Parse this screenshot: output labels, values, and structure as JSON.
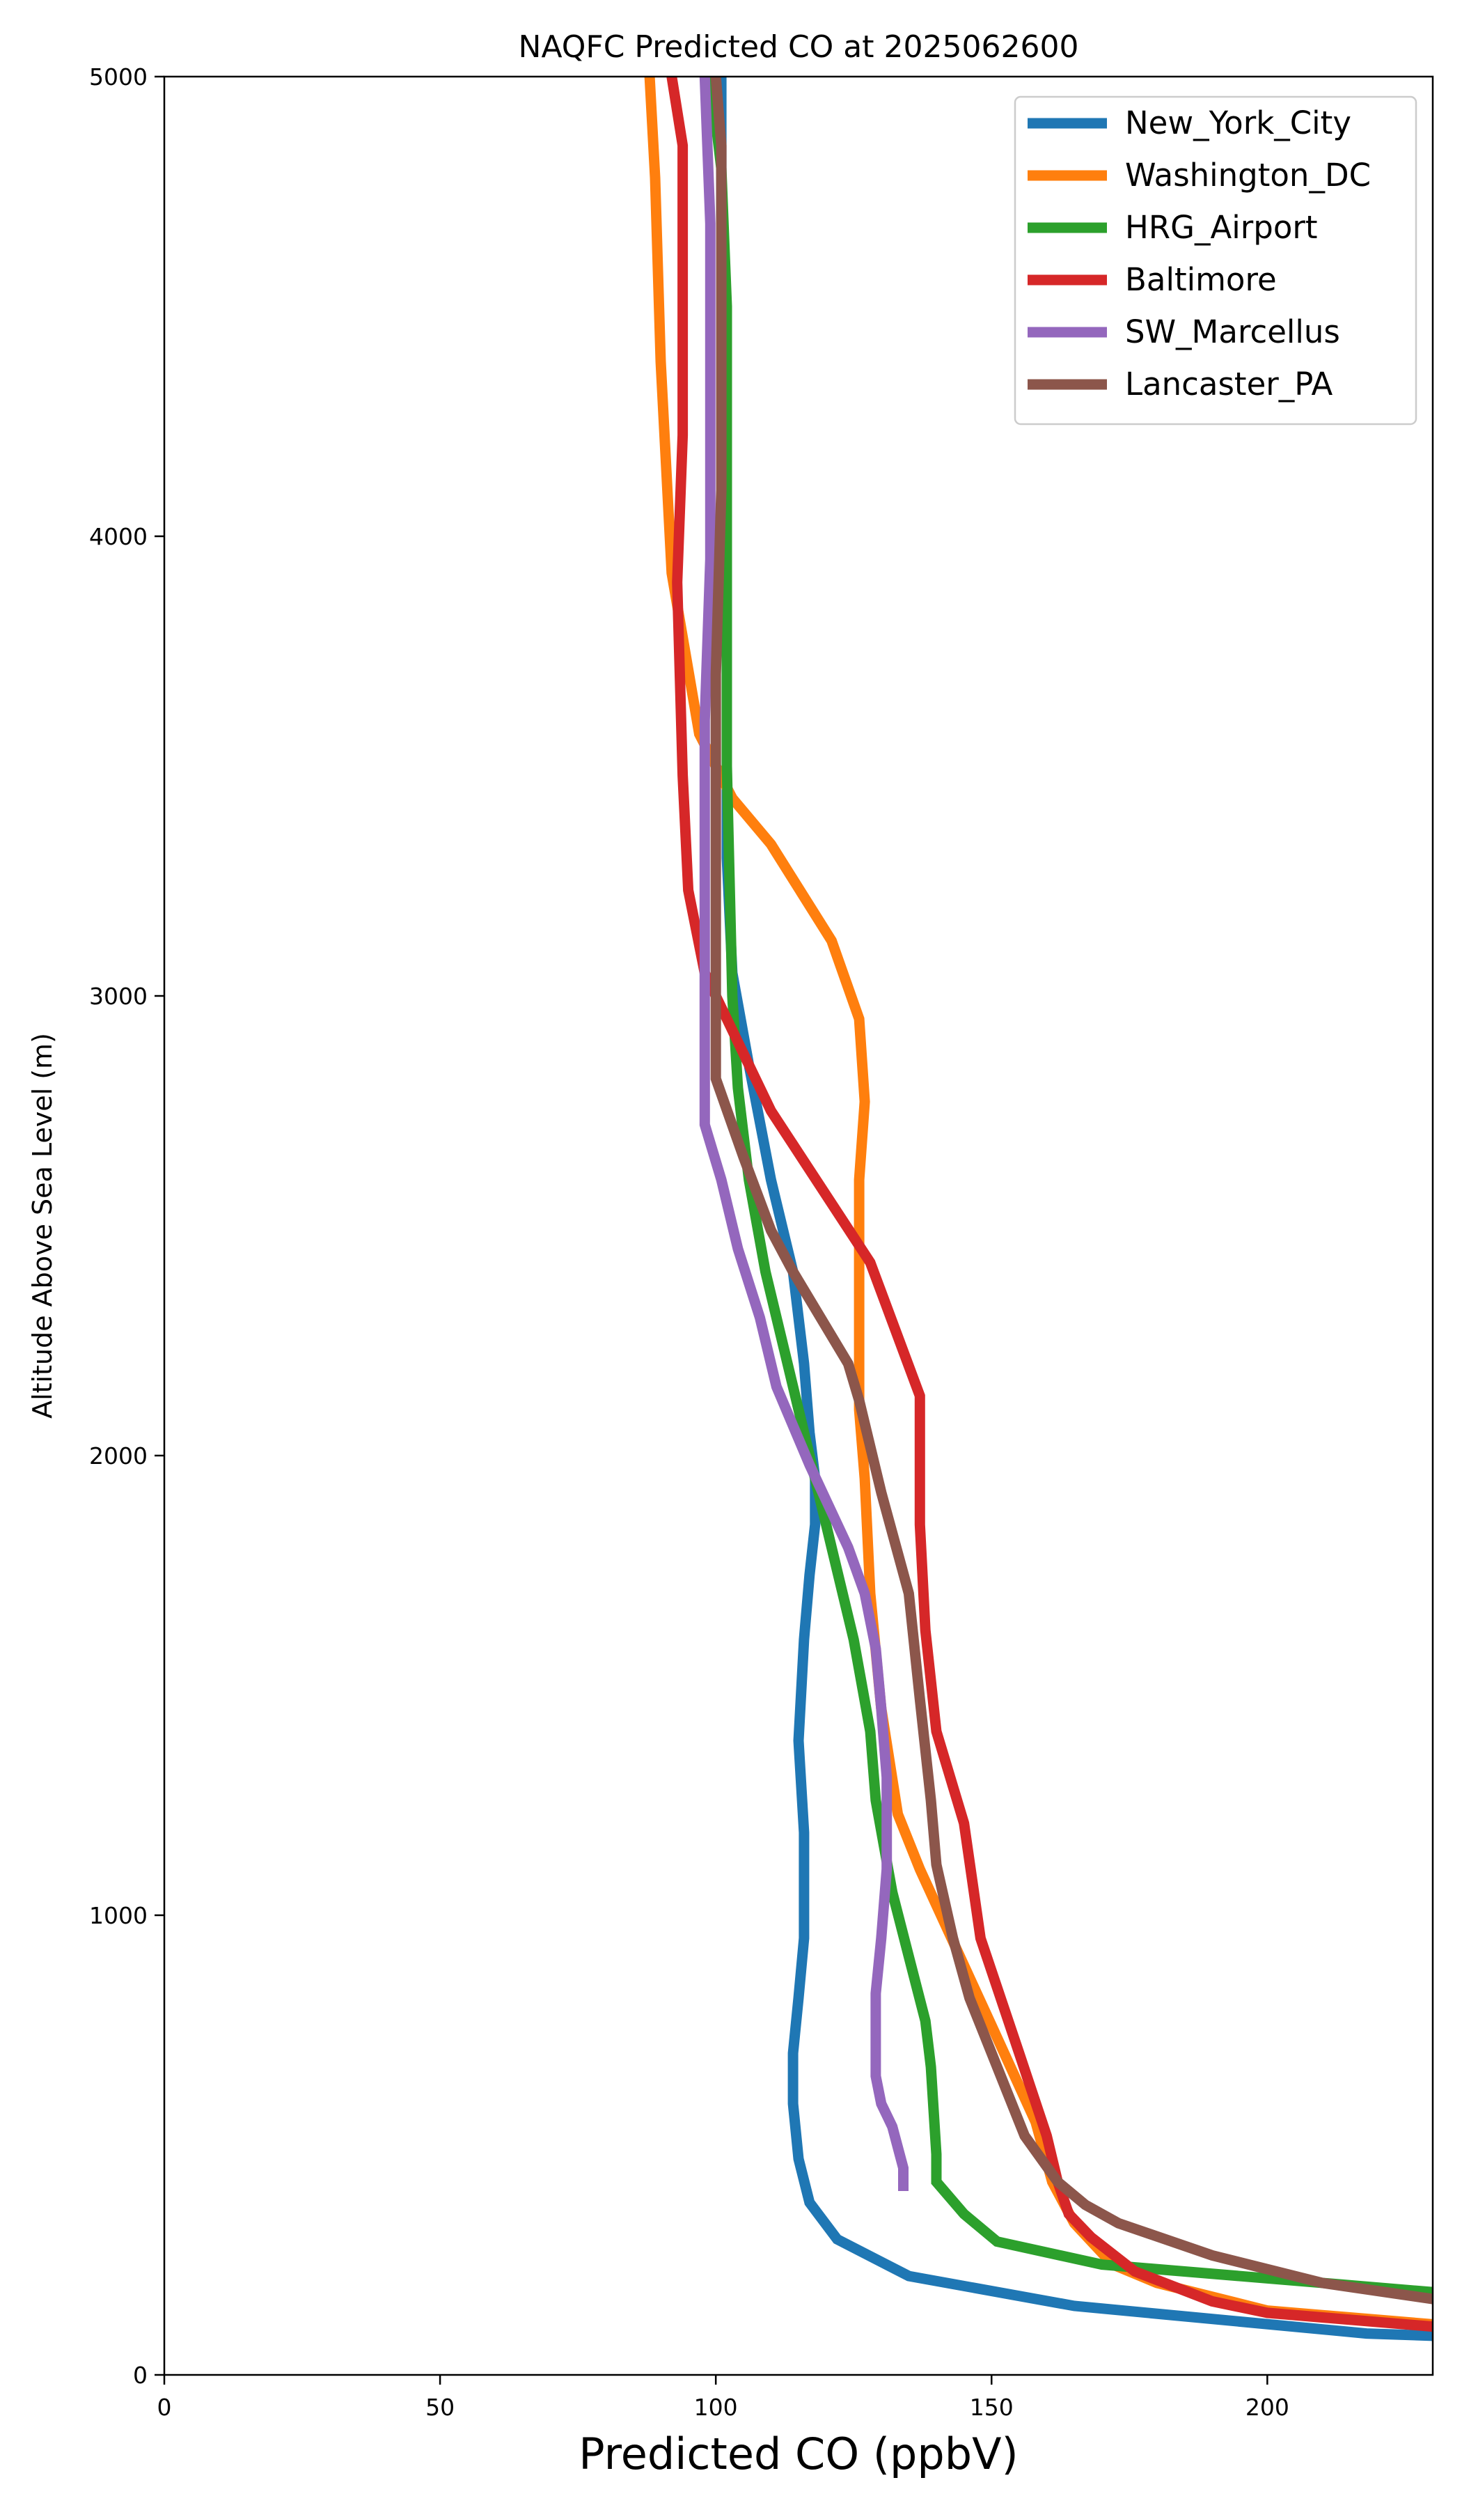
{
  "chart_data": {
    "type": "line",
    "title": "NAQFC Predicted CO at 2025062600",
    "xlabel": "Predicted CO (ppbV)",
    "ylabel": "Altitude Above Sea Level (m)",
    "xlim": [
      0,
      230
    ],
    "ylim": [
      0,
      5000
    ],
    "xticks": [
      0,
      50,
      100,
      150,
      200
    ],
    "yticks": [
      0,
      1000,
      2000,
      3000,
      4000,
      5000
    ],
    "grid": false,
    "legend_position": "upper right",
    "series": [
      {
        "name": "New_York_City",
        "color": "#1f77b4",
        "points": [
          [
            230,
            85
          ],
          [
            218,
            90
          ],
          [
            165,
            150
          ],
          [
            135,
            215
          ],
          [
            122,
            295
          ],
          [
            117,
            375
          ],
          [
            115,
            470
          ],
          [
            114,
            590
          ],
          [
            114,
            700
          ],
          [
            115,
            820
          ],
          [
            116,
            950
          ],
          [
            116,
            1050
          ],
          [
            116,
            1180
          ],
          [
            115,
            1380
          ],
          [
            116,
            1600
          ],
          [
            117,
            1740
          ],
          [
            118,
            1850
          ],
          [
            118,
            1950
          ],
          [
            117,
            2050
          ],
          [
            116,
            2200
          ],
          [
            114,
            2400
          ],
          [
            110,
            2600
          ],
          [
            106,
            2850
          ],
          [
            103,
            3050
          ],
          [
            102,
            3300
          ],
          [
            102,
            3600
          ],
          [
            102,
            3900
          ],
          [
            102,
            4330
          ],
          [
            101,
            4700
          ],
          [
            101,
            5000
          ]
        ]
      },
      {
        "name": "Washington_DC",
        "color": "#ff7f0e",
        "points": [
          [
            230,
            110
          ],
          [
            200,
            140
          ],
          [
            180,
            200
          ],
          [
            172,
            240
          ],
          [
            165,
            330
          ],
          [
            161,
            420
          ],
          [
            158,
            550
          ],
          [
            150,
            760
          ],
          [
            137,
            1100
          ],
          [
            133,
            1220
          ],
          [
            130,
            1450
          ],
          [
            128,
            1700
          ],
          [
            127,
            1950
          ],
          [
            126,
            2100
          ],
          [
            126,
            2400
          ],
          [
            126,
            2600
          ],
          [
            127,
            2770
          ],
          [
            126,
            2950
          ],
          [
            121,
            3120
          ],
          [
            110,
            3330
          ],
          [
            103,
            3430
          ],
          [
            97,
            3570
          ],
          [
            92,
            3920
          ],
          [
            90,
            4380
          ],
          [
            89,
            4780
          ],
          [
            88,
            5000
          ]
        ]
      },
      {
        "name": "HRG_Airport",
        "color": "#2ca02c",
        "points": [
          [
            230,
            180
          ],
          [
            170,
            240
          ],
          [
            151,
            290
          ],
          [
            145,
            350
          ],
          [
            140,
            420
          ],
          [
            140,
            480
          ],
          [
            139,
            670
          ],
          [
            138,
            770
          ],
          [
            135,
            910
          ],
          [
            132,
            1050
          ],
          [
            129,
            1250
          ],
          [
            128,
            1400
          ],
          [
            125,
            1600
          ],
          [
            121,
            1800
          ],
          [
            117,
            2000
          ],
          [
            113,
            2200
          ],
          [
            109,
            2400
          ],
          [
            106,
            2600
          ],
          [
            104,
            2800
          ],
          [
            103,
            3000
          ],
          [
            102,
            3500
          ],
          [
            102,
            3800
          ],
          [
            102,
            4500
          ],
          [
            101,
            4800
          ],
          [
            99,
            5000
          ]
        ]
      },
      {
        "name": "Baltimore",
        "color": "#d62728",
        "points": [
          [
            230,
            105
          ],
          [
            200,
            135
          ],
          [
            190,
            160
          ],
          [
            176,
            225
          ],
          [
            168,
            300
          ],
          [
            164,
            350
          ],
          [
            162,
            420
          ],
          [
            160,
            520
          ],
          [
            155,
            700
          ],
          [
            148,
            950
          ],
          [
            145,
            1200
          ],
          [
            140,
            1400
          ],
          [
            138,
            1620
          ],
          [
            137,
            1850
          ],
          [
            137,
            2130
          ],
          [
            128,
            2420
          ],
          [
            110,
            2750
          ],
          [
            98,
            3050
          ],
          [
            95,
            3230
          ],
          [
            94,
            3480
          ],
          [
            93,
            3900
          ],
          [
            94,
            4220
          ],
          [
            94,
            4850
          ],
          [
            92,
            5000
          ]
        ]
      },
      {
        "name": "SW_Marcellus",
        "color": "#9467bd",
        "points": [
          [
            134,
            400
          ],
          [
            134,
            450
          ],
          [
            132,
            540
          ],
          [
            130,
            590
          ],
          [
            129,
            650
          ],
          [
            129,
            750
          ],
          [
            129,
            830
          ],
          [
            130,
            950
          ],
          [
            131,
            1100
          ],
          [
            131,
            1300
          ],
          [
            130,
            1450
          ],
          [
            129,
            1580
          ],
          [
            127,
            1700
          ],
          [
            124,
            1800
          ],
          [
            117,
            1980
          ],
          [
            111,
            2150
          ],
          [
            108,
            2300
          ],
          [
            104,
            2450
          ],
          [
            101,
            2600
          ],
          [
            98,
            2720
          ],
          [
            98,
            2950
          ],
          [
            98,
            3150
          ],
          [
            98,
            3300
          ],
          [
            98,
            3600
          ],
          [
            99,
            3950
          ],
          [
            99,
            4300
          ],
          [
            99,
            4680
          ],
          [
            98,
            5000
          ]
        ]
      },
      {
        "name": "Lancaster_PA",
        "color": "#8c564b",
        "points": [
          [
            230,
            165
          ],
          [
            210,
            200
          ],
          [
            190,
            260
          ],
          [
            173,
            330
          ],
          [
            167,
            370
          ],
          [
            162,
            420
          ],
          [
            156,
            520
          ],
          [
            150,
            700
          ],
          [
            146,
            820
          ],
          [
            143,
            950
          ],
          [
            140,
            1110
          ],
          [
            139,
            1250
          ],
          [
            137,
            1470
          ],
          [
            135,
            1700
          ],
          [
            130,
            1920
          ],
          [
            126,
            2120
          ],
          [
            124,
            2200
          ],
          [
            114,
            2400
          ],
          [
            110,
            2490
          ],
          [
            105,
            2650
          ],
          [
            100,
            2820
          ],
          [
            100,
            3050
          ],
          [
            100,
            3300
          ],
          [
            100,
            3700
          ],
          [
            101,
            4100
          ],
          [
            101,
            4500
          ],
          [
            101,
            4850
          ],
          [
            100,
            5000
          ]
        ]
      }
    ]
  }
}
